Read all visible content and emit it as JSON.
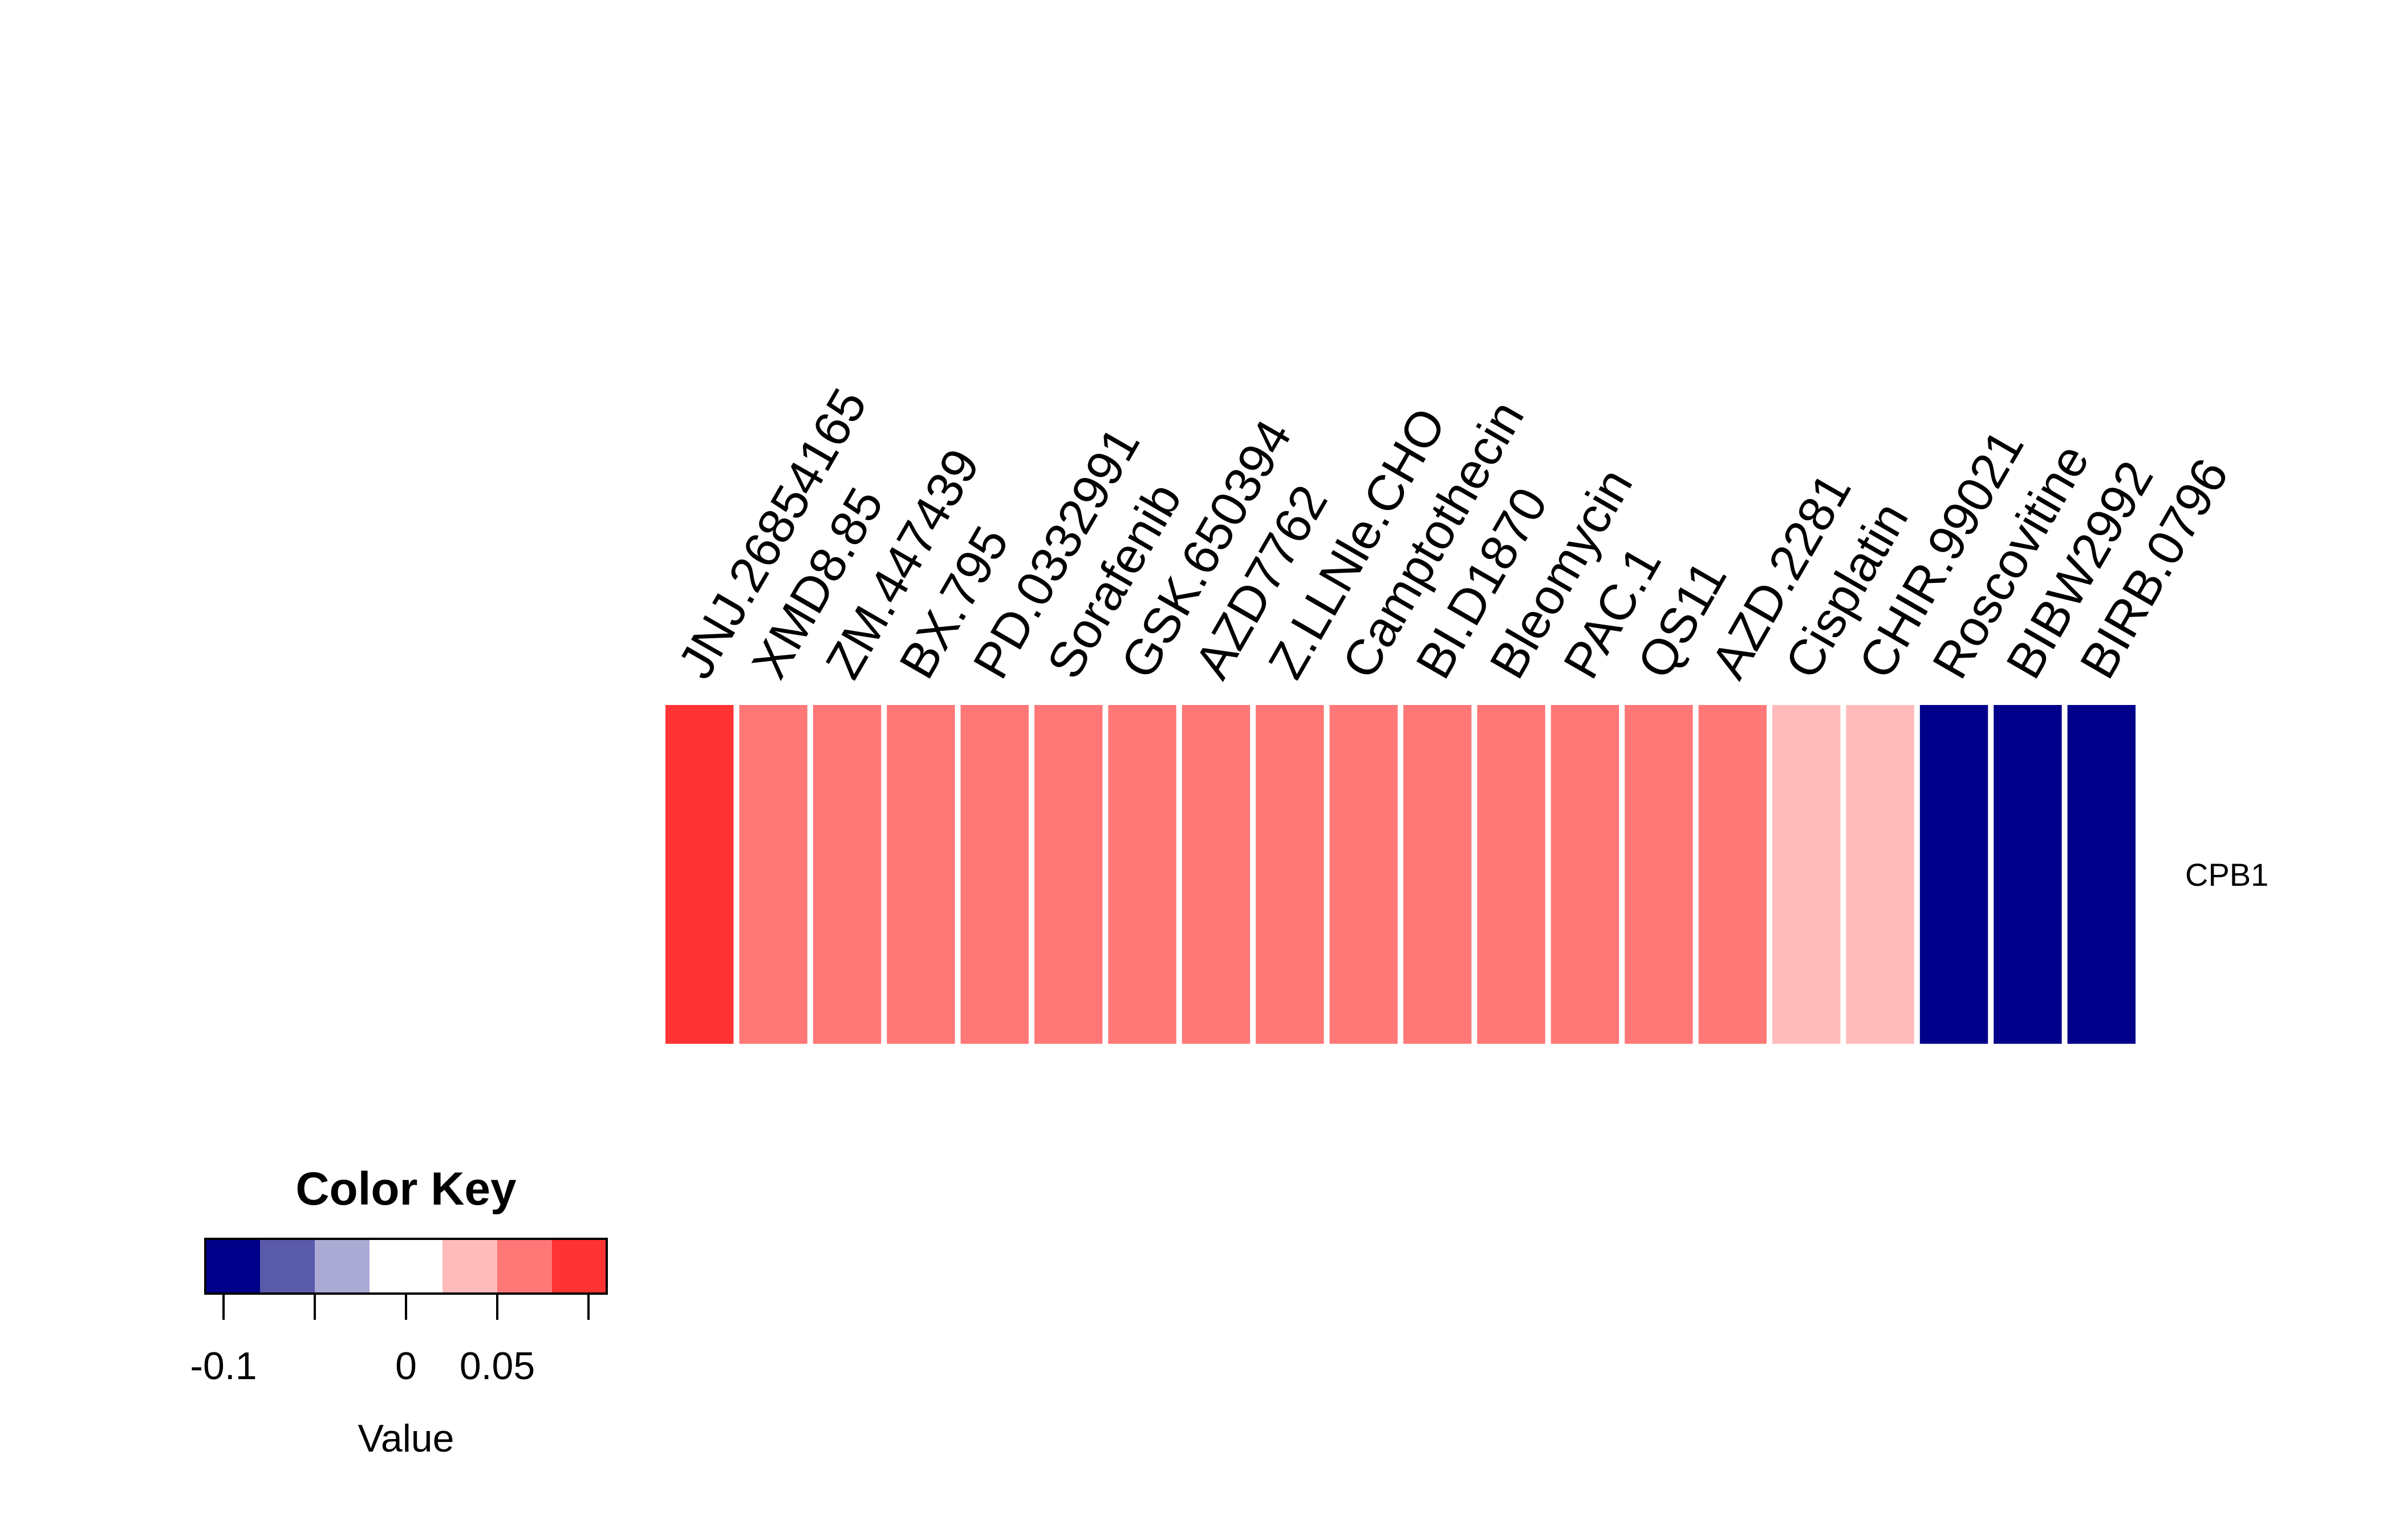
{
  "chart_data": {
    "type": "heatmap",
    "rows": [
      "CPB1"
    ],
    "columns": [
      "JNJ.26854165",
      "XMD8.85",
      "ZM.447439",
      "BX.795",
      "PD.0332991",
      "Sorafenib",
      "GSK.650394",
      "AZD7762",
      "Z.LLNle.CHO",
      "Camptothecin",
      "BI.D1870",
      "Bleomycin",
      "PAC.1",
      "QS11",
      "AZD.2281",
      "Cisplatin",
      "CHIR.99021",
      "Roscovitine",
      "BIBW2992",
      "BIRB.0796"
    ],
    "values": [
      [
        0.09,
        0.06,
        0.06,
        0.06,
        0.06,
        0.06,
        0.06,
        0.06,
        0.06,
        0.06,
        0.06,
        0.06,
        0.06,
        0.06,
        0.06,
        0.03,
        0.03,
        -0.08,
        -0.08,
        -0.08
      ]
    ],
    "color_key": {
      "title": "Color Key",
      "xlabel": "Value",
      "range": [
        -0.11,
        0.11
      ],
      "breaks": [
        -0.11,
        -0.08,
        -0.05,
        -0.02,
        0.02,
        0.05,
        0.08,
        0.11
      ],
      "colors": [
        "#00008b",
        "#5a5aab",
        "#abaad5",
        "#ffffff",
        "#ffbbbb",
        "#ff7777",
        "#ff3333"
      ],
      "ticks": [
        -0.1,
        -0.05,
        0,
        0.05,
        0.1
      ],
      "tick_labels": [
        "-0.1",
        "",
        "0",
        "0.05",
        ""
      ]
    },
    "legend_position": "bottom-left",
    "grid": false
  }
}
